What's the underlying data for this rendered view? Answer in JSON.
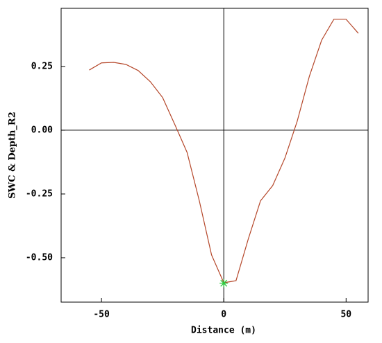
{
  "chart_data": {
    "type": "line",
    "xlabel": "Distance (m)",
    "ylabel": "SWC & Depth_R2",
    "x": [
      -55,
      -50,
      -45,
      -40,
      -35,
      -30,
      -25,
      -20,
      -15,
      -10,
      -5,
      0,
      5,
      10,
      15,
      20,
      25,
      30,
      35,
      40,
      45,
      50,
      55
    ],
    "series": [
      {
        "name": "SWC & Depth_R2",
        "color": "#b5472a",
        "values": [
          0.236,
          0.264,
          0.266,
          0.258,
          0.234,
          0.19,
          0.128,
          0.022,
          -0.087,
          -0.277,
          -0.489,
          -0.598,
          -0.59,
          -0.427,
          -0.277,
          -0.217,
          -0.109,
          0.035,
          0.212,
          0.353,
          0.435,
          0.435,
          0.38
        ]
      }
    ],
    "marker": {
      "x": 0,
      "y": -0.6,
      "color": "#2ecc40"
    },
    "xlim": [
      -66.5,
      59
    ],
    "ylim": [
      -0.674,
      0.478
    ],
    "xticks": [
      -50,
      0,
      50
    ],
    "yticks": [
      0.25,
      {
        "value": 0,
        "label": "0.00"
      },
      -0.25,
      {
        "value": -0.5,
        "label": "-0.50"
      }
    ],
    "zero_lines": true
  }
}
